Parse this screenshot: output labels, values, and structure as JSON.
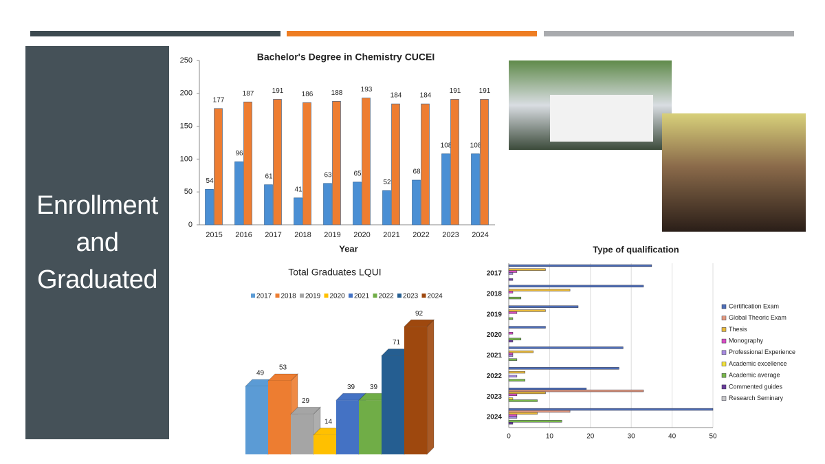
{
  "slide_title": "Enrollment and Graduated",
  "chart_data": [
    {
      "type": "bar",
      "title": "Bachelor's Degree in Chemistry CUCEI",
      "x_label": "Year",
      "categories": [
        "2015",
        "2016",
        "2017",
        "2018",
        "2019",
        "2020",
        "2021",
        "2022",
        "2023",
        "2024"
      ],
      "series": [
        {
          "color": "#4a8fd4",
          "values": [
            54,
            96,
            61,
            41,
            63,
            65,
            52,
            68,
            108,
            108
          ]
        },
        {
          "color": "#ee7d31",
          "values": [
            177,
            187,
            191,
            186,
            188,
            193,
            184,
            184,
            191,
            191
          ]
        }
      ],
      "ylim": [
        0,
        250
      ],
      "yticks": [
        0,
        50,
        100,
        150,
        200,
        250
      ]
    },
    {
      "type": "bar3d",
      "title": "Total Graduates LQUI",
      "series": [
        {
          "name": "2017",
          "color": "#5b9bd5",
          "values": [
            49
          ]
        },
        {
          "name": "2018",
          "color": "#ed7d31",
          "values": [
            53
          ]
        },
        {
          "name": "2019",
          "color": "#a5a5a5",
          "values": [
            29
          ]
        },
        {
          "name": "2020",
          "color": "#ffc000",
          "values": [
            14
          ]
        },
        {
          "name": "2021",
          "color": "#4472c4",
          "values": [
            39
          ]
        },
        {
          "name": "2022",
          "color": "#70ad47",
          "values": [
            39
          ]
        },
        {
          "name": "2023",
          "color": "#255e91",
          "values": [
            71
          ]
        },
        {
          "name": "2024",
          "color": "#9e480e",
          "values": [
            92
          ]
        }
      ]
    },
    {
      "type": "hbar",
      "title": "Type of qualification",
      "categories": [
        "2017",
        "2018",
        "2019",
        "2020",
        "2021",
        "2022",
        "2023",
        "2024"
      ],
      "series": [
        {
          "name": "Certification Exam",
          "color": "#4f6fb8",
          "values": [
            35,
            33,
            17,
            9,
            28,
            27,
            19,
            50
          ]
        },
        {
          "name": "Global Theoric Exam",
          "color": "#e39a80",
          "values": [
            0,
            0,
            0,
            0,
            0,
            0,
            33,
            15
          ]
        },
        {
          "name": "Thesis",
          "color": "#e8b93a",
          "values": [
            9,
            15,
            9,
            0,
            6,
            4,
            9,
            7
          ]
        },
        {
          "name": "Monography",
          "color": "#d94fc4",
          "values": [
            2,
            1,
            2,
            1,
            1,
            0,
            2,
            2
          ]
        },
        {
          "name": "Professional Experience",
          "color": "#a88be0",
          "values": [
            1,
            0,
            0,
            0,
            1,
            2,
            0,
            2
          ]
        },
        {
          "name": "Academic excellence",
          "color": "#f2e23a",
          "values": [
            0,
            0,
            0,
            0,
            0,
            0,
            1,
            0
          ]
        },
        {
          "name": "Academic average",
          "color": "#79b84a",
          "values": [
            0,
            3,
            1,
            3,
            2,
            4,
            7,
            13
          ]
        },
        {
          "name": "Commented guides",
          "color": "#6a3d9a",
          "values": [
            1,
            0,
            0,
            1,
            0,
            0,
            0,
            1
          ]
        },
        {
          "name": "Research Seminary",
          "color": "#c8c8c8",
          "values": [
            0,
            0,
            0,
            0,
            0,
            0,
            0,
            0
          ]
        }
      ],
      "xlim": [
        0,
        50
      ],
      "xticks": [
        0,
        10,
        20,
        30,
        40,
        50
      ],
      "grid": true
    }
  ]
}
